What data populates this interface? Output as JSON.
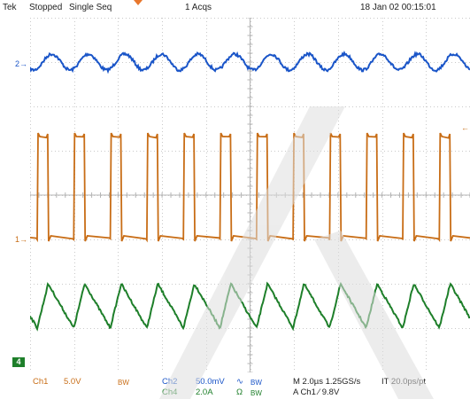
{
  "header": {
    "brand": "Tek",
    "state": "Stopped",
    "mode": "Single Seq",
    "acqs": "1 Acqs",
    "timestamp": "18 Jan 02 00:15:01"
  },
  "markers": {
    "ch2": "2",
    "ch1": "1",
    "ch4": "4"
  },
  "colors": {
    "ch1": "#c86d16",
    "ch2": "#1a55c8",
    "ch4": "#1e7f2a",
    "grid": "#c9c9c9",
    "trigger": "#e8772d"
  },
  "status": {
    "ch1_label": "Ch1",
    "ch1_scale": "5.0V",
    "ch1_bw": "BW",
    "ch2_label": "Ch2",
    "ch2_scale": "50.0mV",
    "ch2_coupling": "∿",
    "ch2_bw": "BW",
    "ch4_label": "Ch4",
    "ch4_scale": "2.0A",
    "ch4_coupling": "Ω",
    "ch4_bw": "BW",
    "horizontal": "M 2.0µs 1.25GS/s",
    "interp": "IT 20.0ps/pt",
    "trigger": "A  Ch1  ⁄  9.8V"
  }
}
